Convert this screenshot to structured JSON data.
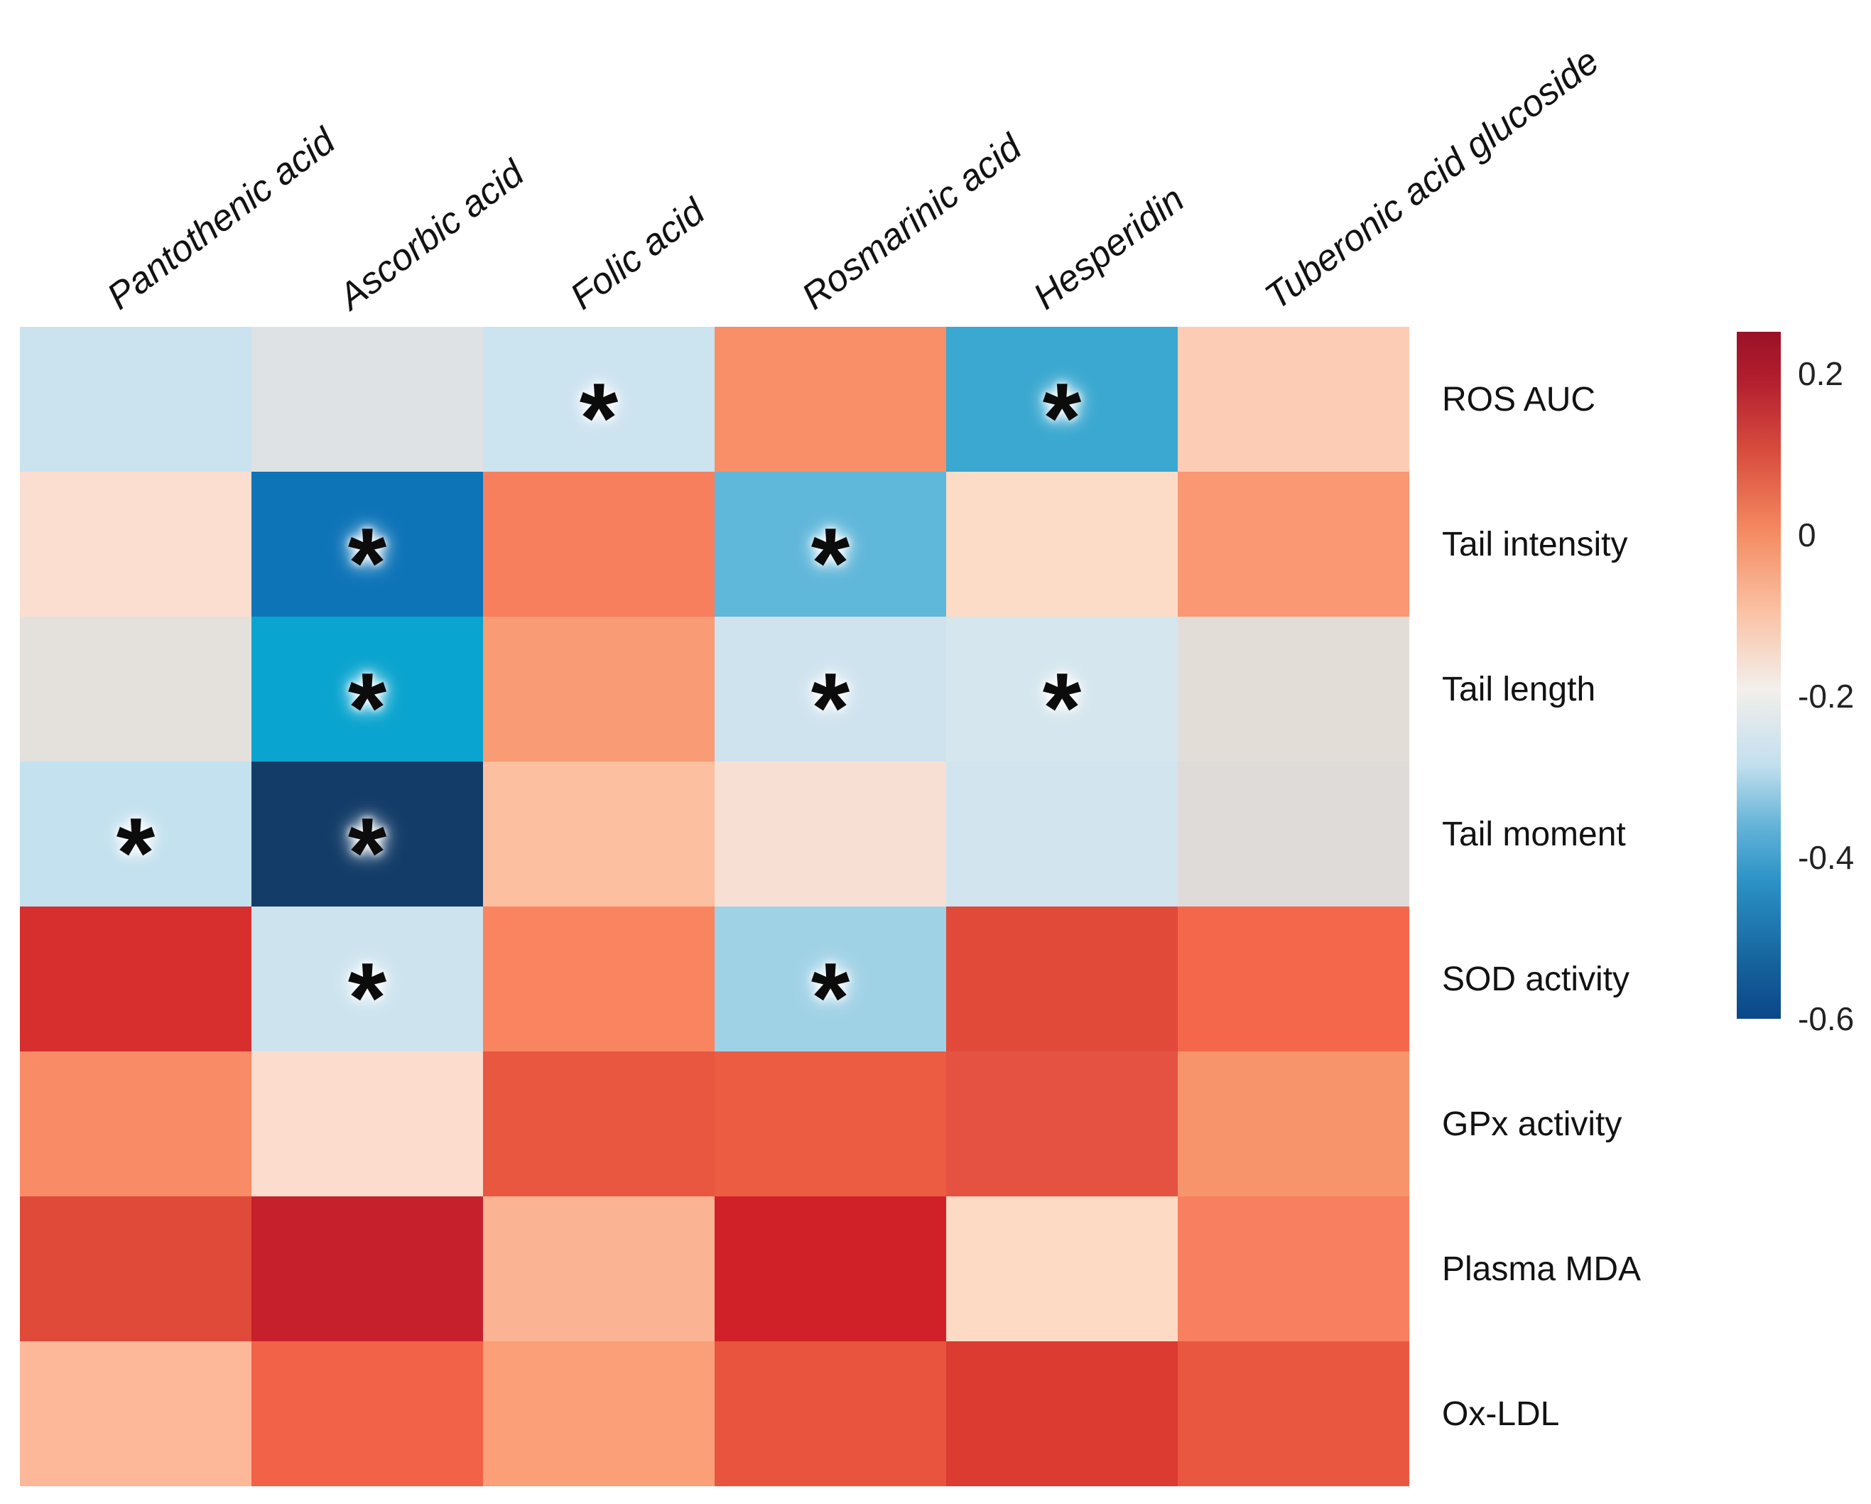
{
  "figure": {
    "background": "#ffffff"
  },
  "chart_data": {
    "type": "heatmap",
    "title": "",
    "columns": [
      "Pantothenic acid",
      "Ascorbic acid",
      "Folic acid",
      "Rosmarinic acid",
      "Hesperidin",
      "Tuberonic acid glucoside"
    ],
    "rows": [
      "ROS AUC",
      "Tail intensity",
      "Tail length",
      "Tail moment",
      "SOD activity",
      "GPx activity",
      "Plasma MDA",
      "Ox-LDL"
    ],
    "values": [
      [
        -0.28,
        -0.21,
        -0.27,
        0.02,
        -0.43,
        -0.07
      ],
      [
        -0.1,
        -0.53,
        0.04,
        -0.4,
        -0.1,
        0.01
      ],
      [
        -0.19,
        -0.46,
        0.0,
        -0.27,
        -0.26,
        -0.19
      ],
      [
        -0.29,
        -0.6,
        -0.05,
        -0.13,
        -0.26,
        -0.19
      ],
      [
        0.17,
        -0.27,
        0.03,
        -0.33,
        0.13,
        0.09
      ],
      [
        0.02,
        -0.1,
        0.11,
        0.11,
        0.12,
        0.01
      ],
      [
        0.14,
        0.2,
        -0.04,
        0.19,
        -0.1,
        0.03
      ],
      [
        -0.05,
        0.09,
        -0.01,
        0.12,
        0.15,
        0.11
      ]
    ],
    "significant": [
      [
        false,
        false,
        true,
        false,
        true,
        false
      ],
      [
        false,
        true,
        false,
        true,
        false,
        false
      ],
      [
        false,
        true,
        false,
        true,
        true,
        false
      ],
      [
        true,
        true,
        false,
        false,
        false,
        false
      ],
      [
        false,
        true,
        false,
        true,
        false,
        false
      ],
      [
        false,
        false,
        false,
        false,
        false,
        false
      ],
      [
        false,
        false,
        false,
        false,
        false,
        false
      ],
      [
        false,
        false,
        false,
        false,
        false,
        false
      ]
    ],
    "cell_colors": [
      [
        "#cbe3ef",
        "#dee2e4",
        "#cce3f0",
        "#f98f68",
        "#3aa8d0",
        "#fccdb4"
      ],
      [
        "#fcded0",
        "#0e74b8",
        "#f77f5e",
        "#5fb7da",
        "#fcdcc6",
        "#f99873"
      ],
      [
        "#e4e0dc",
        "#09a4cf",
        "#f99b74",
        "#cfe3ef",
        "#d5e6ee",
        "#e3ddd8"
      ],
      [
        "#c3e1ef",
        "#133c68",
        "#fcc0a1",
        "#f7e0d3",
        "#d2e4ee",
        "#dfdbd8"
      ],
      [
        "#d62f2e",
        "#cde4ef",
        "#f9845f",
        "#a0d2e6",
        "#e14938",
        "#f4674a"
      ],
      [
        "#f98c66",
        "#fcdccd",
        "#e95740",
        "#ec5c43",
        "#e55241",
        "#f8946c"
      ],
      [
        "#e04a39",
        "#c7202d",
        "#fbb493",
        "#d02128",
        "#fcdac4",
        "#f87f5f"
      ],
      [
        "#fcb899",
        "#f16248",
        "#fa9f78",
        "#e8543e",
        "#dc3b31",
        "#ea5740"
      ]
    ],
    "significance_marker": "*",
    "grid": false,
    "legend_position": "right",
    "colorbar": {
      "domain_top": 0.252,
      "domain_bottom": -0.6,
      "ticks": [
        {
          "label": "0.2",
          "value": 0.2
        },
        {
          "label": "0",
          "value": 0.0
        },
        {
          "label": "-0.2",
          "value": -0.2
        },
        {
          "label": "-0.4",
          "value": -0.4
        },
        {
          "label": "-0.6",
          "value": -0.6
        }
      ],
      "gradient_stops": [
        {
          "color": "#9b1127",
          "pos": 0
        },
        {
          "color": "#b21e2e",
          "pos": 7
        },
        {
          "color": "#da4f3f",
          "pos": 18
        },
        {
          "color": "#f58a61",
          "pos": 29
        },
        {
          "color": "#fac3a5",
          "pos": 41
        },
        {
          "color": "#f3efec",
          "pos": 52
        },
        {
          "color": "#c3dfee",
          "pos": 63
        },
        {
          "color": "#63b3d8",
          "pos": 72
        },
        {
          "color": "#2b92c6",
          "pos": 80
        },
        {
          "color": "#17669f",
          "pos": 91
        },
        {
          "color": "#0b4689",
          "pos": 100
        }
      ]
    }
  }
}
